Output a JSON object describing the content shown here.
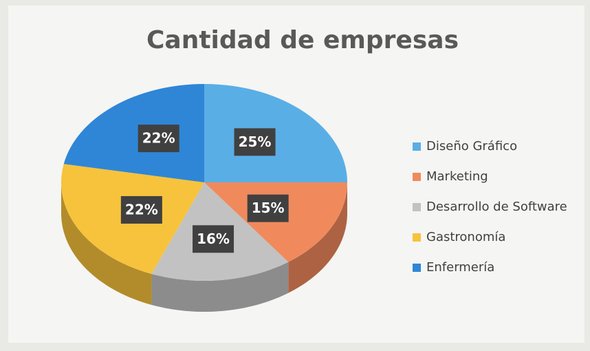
{
  "chart_data": {
    "type": "pie",
    "title": "Cantidad de empresas",
    "categories": [
      "Diseño Gráfico",
      "Marketing",
      "Desarrollo de Software",
      "Gastronomía",
      "Enfermería"
    ],
    "values": [
      25,
      15,
      16,
      22,
      22
    ],
    "value_labels": [
      "25%",
      "15%",
      "16%",
      "22%",
      "22%"
    ],
    "colors": [
      "#5aaee6",
      "#f08a5d",
      "#c2c2c2",
      "#f7c33c",
      "#2f86d6"
    ],
    "legend": "right"
  }
}
